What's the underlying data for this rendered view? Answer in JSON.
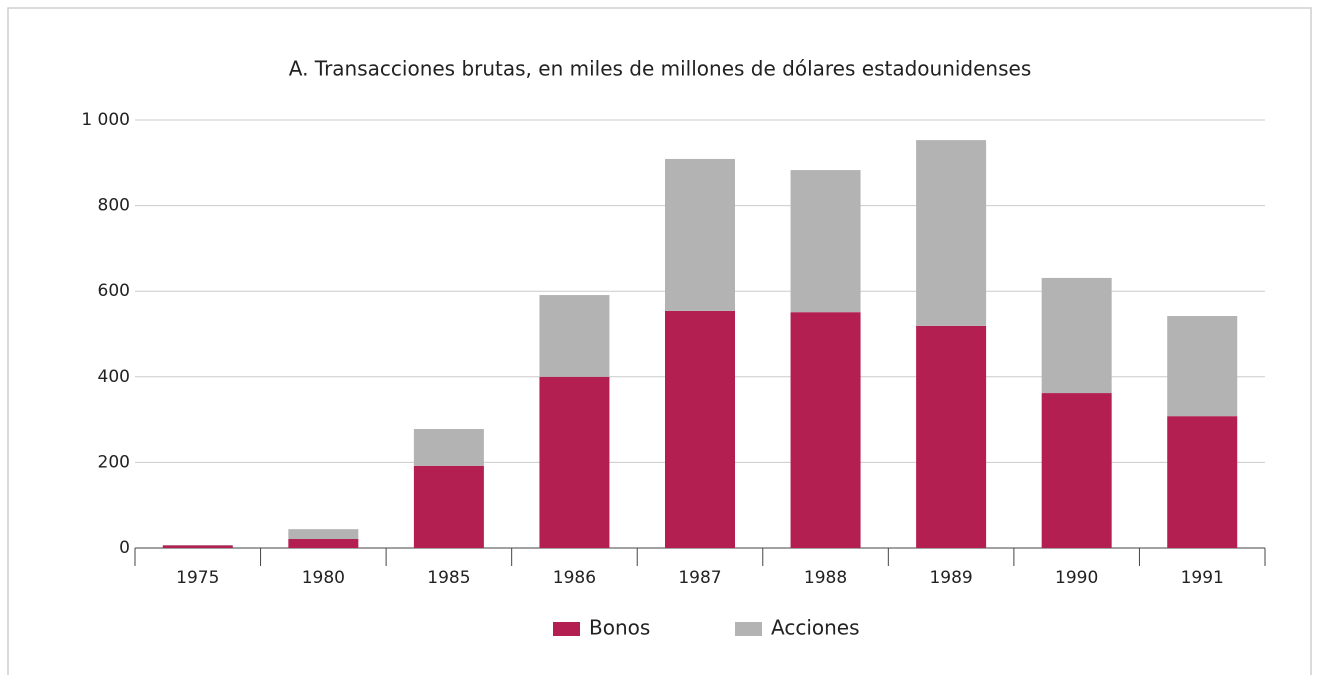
{
  "chart_data": {
    "type": "stacked_bar",
    "title": "A. Transacciones brutas, en miles de millones de dólares estadounidenses",
    "categories": [
      "1975",
      "1980",
      "1985",
      "1986",
      "1987",
      "1988",
      "1989",
      "1990",
      "1991"
    ],
    "series": [
      {
        "name": "Bonos",
        "color": "#b31f51",
        "values": [
          6,
          21,
          192,
          400,
          554,
          551,
          519,
          362,
          308
        ]
      },
      {
        "name": "Acciones",
        "color": "#b3b3b3",
        "values": [
          1,
          23,
          86,
          191,
          355,
          332,
          434,
          269,
          234
        ]
      }
    ],
    "ylim": [
      0,
      1000
    ],
    "yticks": [
      0,
      200,
      400,
      600,
      800,
      {
        "value": 1000,
        "label": "1 000"
      }
    ],
    "grid": true,
    "legend": "bottom"
  }
}
